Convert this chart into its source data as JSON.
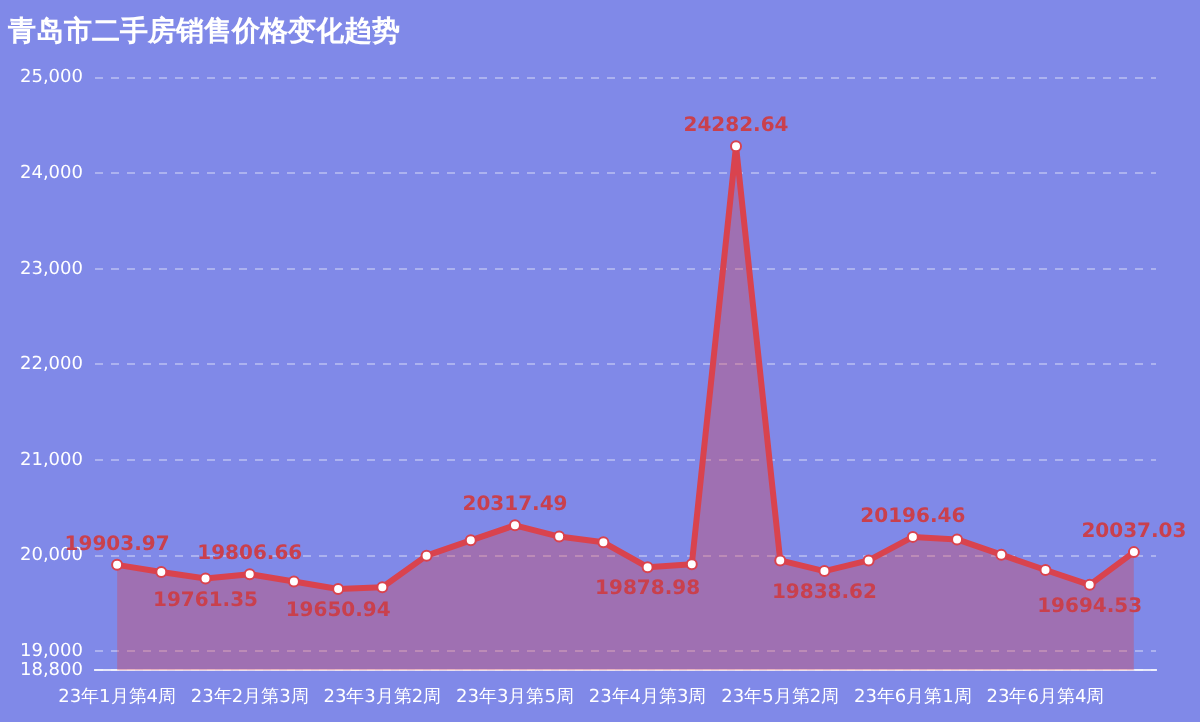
{
  "chart_data": {
    "type": "area",
    "title": "青岛市二手房销售价格变化趋势",
    "categories": [
      "23年1月第4周",
      null,
      null,
      "23年2月第3周",
      null,
      null,
      "23年3月第2周",
      null,
      null,
      "23年3月第5周",
      null,
      null,
      "23年4月第3周",
      null,
      null,
      "23年5月第2周",
      null,
      null,
      "23年6月第1周",
      null,
      null,
      "23年6月第4周",
      null,
      null
    ],
    "series": [
      {
        "color": "#d9434e",
        "values": [
          19903.97,
          19830,
          19761.35,
          19806.66,
          19730,
          19650.94,
          19670,
          20000,
          20160,
          20317.49,
          20200,
          20140,
          19878.98,
          19910,
          24282.64,
          19950,
          19838.62,
          19950,
          20196.46,
          20170,
          20010,
          19850,
          19694.53,
          20037.03
        ],
        "value_labels": [
          "19903.97",
          null,
          "19761.35",
          "19806.66",
          null,
          "19650.94",
          null,
          null,
          null,
          "20317.49",
          null,
          null,
          "19878.98",
          null,
          "24282.64",
          null,
          "19838.62",
          null,
          "20196.46",
          null,
          null,
          null,
          "19694.53",
          "20037.03"
        ]
      }
    ],
    "ylim": [
      18800,
      25000
    ],
    "yticks": [
      {
        "value": 18800,
        "label": "18,800"
      },
      {
        "value": 19000,
        "label": "19,000"
      },
      {
        "value": 20000,
        "label": "20,000"
      },
      {
        "value": 21000,
        "label": "21,000"
      },
      {
        "value": 22000,
        "label": "22,000"
      },
      {
        "value": 23000,
        "label": "23,000"
      },
      {
        "value": 24000,
        "label": "24,000"
      },
      {
        "value": 25000,
        "label": "25,000"
      }
    ],
    "grid": "y",
    "legend": false,
    "marker": "circle",
    "line_style": "solid"
  }
}
